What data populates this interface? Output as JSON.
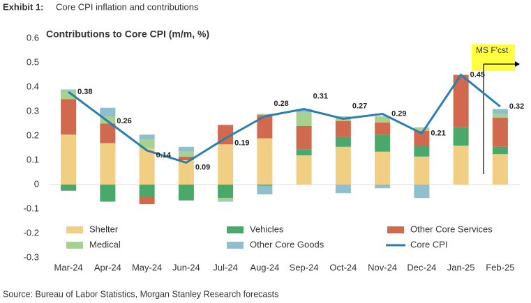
{
  "exhibit": {
    "label": "Exhibit 1:",
    "text": "Core CPI inflation and contributions"
  },
  "source": "Source: Bureau of Labor Statistics, Morgan Stanley Research forecasts",
  "chart_data": {
    "type": "bar",
    "stacked": true,
    "title": "Contributions to Core CPI (m/m, %)",
    "annotation": "MS F'cst",
    "categories": [
      "Mar-24",
      "Apr-24",
      "May-24",
      "Jun-24",
      "Jul-24",
      "Aug-24",
      "Sep-24",
      "Oct-24",
      "Nov-24",
      "Dec-24",
      "Jan-25",
      "Feb-25"
    ],
    "ylim": [
      -0.3,
      0.6
    ],
    "yticks": [
      -0.3,
      -0.2,
      -0.1,
      0,
      0.1,
      0.2,
      0.3,
      0.4,
      0.5,
      0.6
    ],
    "series": [
      {
        "name": "Shelter",
        "color": "#f0cf85",
        "values": [
          0.205,
          0.17,
          0.15,
          0.1,
          0.165,
          0.19,
          0.12,
          0.155,
          0.135,
          0.115,
          0.16,
          0.125
        ]
      },
      {
        "name": "Vehicles",
        "color": "#4aa86a",
        "values": [
          -0.025,
          -0.07,
          -0.05,
          -0.065,
          -0.055,
          -0.005,
          0.025,
          0.04,
          0.07,
          0.045,
          0.075,
          0.03
        ]
      },
      {
        "name": "Other Core Services",
        "color": "#d0694e",
        "values": [
          0.145,
          0.08,
          -0.03,
          0.015,
          0.08,
          0.095,
          0.095,
          0.065,
          0.05,
          0.06,
          0.215,
          0.12
        ]
      },
      {
        "name": "Medical",
        "color": "#a7d18f",
        "values": [
          0.035,
          0.03,
          0.035,
          0.02,
          -0.01,
          0.005,
          0.055,
          0.02,
          0.025,
          0.015,
          0,
          0.015
        ]
      },
      {
        "name": "Other Core Goods",
        "color": "#8fbfcc",
        "values": [
          0.005,
          0.035,
          0.02,
          0.02,
          -0.005,
          -0.035,
          0.015,
          -0.035,
          -0.015,
          -0.055,
          0,
          0.02
        ]
      },
      {
        "name": "Core CPI",
        "color": "#2a7fb0",
        "type": "line",
        "values": [
          0.38,
          0.26,
          0.14,
          0.09,
          0.19,
          0.28,
          0.31,
          0.27,
          0.29,
          0.21,
          0.45,
          0.32
        ]
      }
    ]
  }
}
